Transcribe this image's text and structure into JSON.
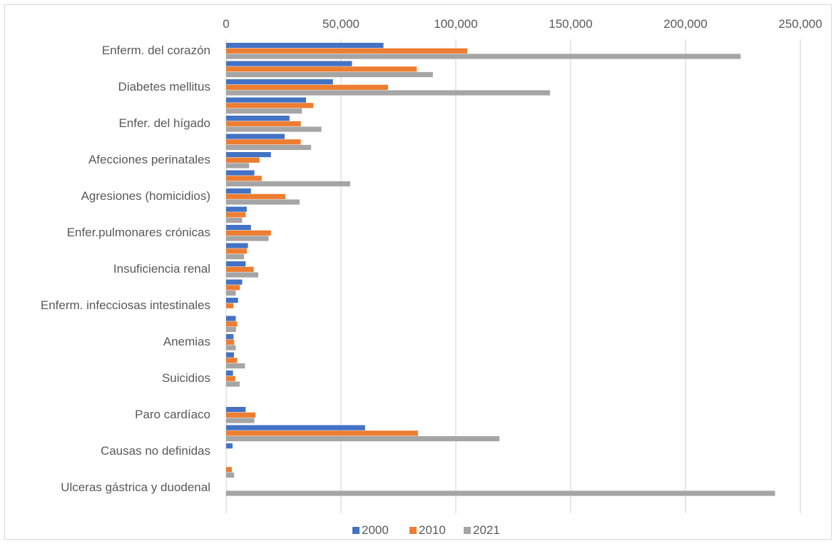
{
  "chart_data": {
    "type": "bar",
    "orientation": "horizontal",
    "title": "",
    "xlim": [
      0,
      250000
    ],
    "x_ticks": [
      "0",
      "50,000",
      "100,000",
      "150,000",
      "200,000",
      "250,000"
    ],
    "x_tick_values": [
      0,
      50000,
      100000,
      150000,
      200000,
      250000
    ],
    "grid": true,
    "legend_position": "bottom",
    "category_labels": [
      "Enferm. del corazón",
      "Diabetes mellitus",
      "Enfer. del hígado",
      "Afecciones  perinatales",
      "Agresiones (homicidios)",
      "Enfer.pulmonares crónicas",
      "Insuficiencia renal",
      "Enferm. infecciosas intestinales",
      "Anemias",
      "Suicidios",
      "Paro cardíaco",
      "Causas no definidas",
      "Ulceras gástrica y duodenal"
    ],
    "groups": 25,
    "series": [
      {
        "name": "2000",
        "color": "#4472c4",
        "values": [
          68500,
          54800,
          46500,
          34800,
          27600,
          25500,
          19500,
          12300,
          10800,
          9000,
          10800,
          9500,
          8500,
          7000,
          5200,
          4200,
          3200,
          3400,
          3000,
          0,
          8500,
          60500,
          2800,
          0,
          0
        ]
      },
      {
        "name": "2010",
        "color": "#ed7d31",
        "values": [
          105000,
          83000,
          70500,
          38000,
          32500,
          32500,
          14500,
          15500,
          25800,
          8500,
          19500,
          9000,
          12000,
          6000,
          3200,
          4800,
          3500,
          4800,
          4000,
          0,
          12800,
          83500,
          0,
          2500,
          0
        ]
      },
      {
        "name": "2021",
        "color": "#a5a5a5",
        "values": [
          224000,
          90000,
          141000,
          33000,
          41500,
          37000,
          10000,
          54000,
          32000,
          7000,
          18500,
          7800,
          14000,
          4200,
          0,
          4300,
          4200,
          8200,
          5900,
          0,
          12300,
          119000,
          0,
          3500,
          239000
        ]
      }
    ]
  }
}
